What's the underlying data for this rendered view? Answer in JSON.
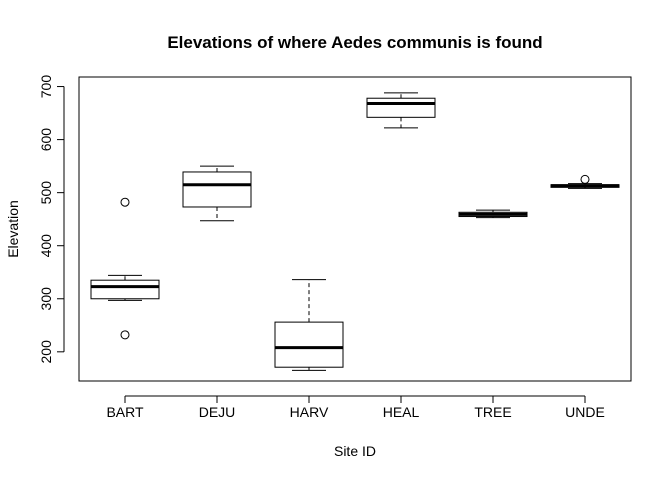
{
  "chart_data": {
    "type": "boxplot",
    "title": "Elevations of where Aedes communis is found",
    "xlabel": "Site ID",
    "ylabel": "Elevation",
    "ylim": [
      145,
      718
    ],
    "yticks": [
      200,
      300,
      400,
      500,
      600,
      700
    ],
    "categories": [
      "BART",
      "DEJU",
      "HARV",
      "HEAL",
      "TREE",
      "UNDE"
    ],
    "boxes": [
      {
        "name": "BART",
        "whisker_low": 297,
        "q1": 300,
        "median": 323,
        "q3": 335,
        "whisker_high": 344,
        "outliers": [
          482,
          232
        ]
      },
      {
        "name": "DEJU",
        "whisker_low": 447,
        "q1": 473,
        "median": 515,
        "q3": 539,
        "whisker_high": 550,
        "outliers": []
      },
      {
        "name": "HARV",
        "whisker_low": 165,
        "q1": 171,
        "median": 208,
        "q3": 256,
        "whisker_high": 336,
        "outliers": []
      },
      {
        "name": "HEAL",
        "whisker_low": 622,
        "q1": 642,
        "median": 668,
        "q3": 678,
        "whisker_high": 688,
        "outliers": []
      },
      {
        "name": "TREE",
        "whisker_low": 453,
        "q1": 455,
        "median": 459,
        "q3": 463,
        "whisker_high": 467,
        "outliers": []
      },
      {
        "name": "UNDE",
        "whisker_low": 508,
        "q1": 510,
        "median": 513,
        "q3": 515,
        "whisker_high": 517,
        "outliers": [
          525
        ]
      }
    ]
  }
}
